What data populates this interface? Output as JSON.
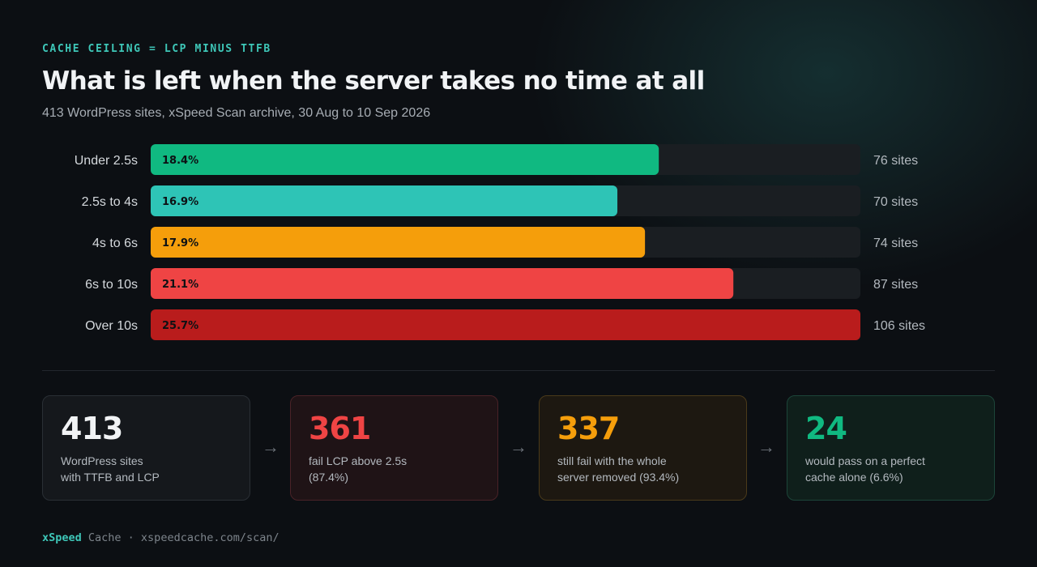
{
  "header": {
    "eyebrow": "CACHE CEILING = LCP MINUS TTFB",
    "title": "What is left when the server takes no time at all",
    "subtitle": "413 WordPress sites, xSpeed Scan archive, 30 Aug to 10 Sep 2026"
  },
  "chart_data": {
    "type": "bar",
    "orientation": "horizontal",
    "categories": [
      "Under 2.5s",
      "2.5s to 4s",
      "4s to 6s",
      "6s to 10s",
      "Over 10s"
    ],
    "values": [
      18.4,
      16.9,
      17.9,
      21.1,
      25.7
    ],
    "value_labels": [
      "18.4%",
      "16.9%",
      "17.9%",
      "21.1%",
      "25.7%"
    ],
    "counts": [
      "76 sites",
      "70 sites",
      "74 sites",
      "87 sites",
      "106 sites"
    ],
    "colors": [
      "#10b981",
      "#2ec4b6",
      "#f59e0b",
      "#ef4444",
      "#b91c1c"
    ],
    "track_color": "#1a1e22",
    "xlim": [
      0,
      25.7
    ]
  },
  "cards": [
    {
      "value": "413",
      "desc_line1": "WordPress sites",
      "desc_line2": "with TTFB and LCP",
      "color": "#f1f3f5",
      "bg": "#15181c",
      "border": "#2a2f35"
    },
    {
      "value": "361",
      "desc_line1": "fail LCP above 2.5s",
      "desc_line2": "(87.4%)",
      "color": "#ef4444",
      "bg": "#1f1316",
      "border": "#4a2227"
    },
    {
      "value": "337",
      "desc_line1": "still fail with the whole",
      "desc_line2": "server removed (93.4%)",
      "color": "#f59e0b",
      "bg": "#1d1811",
      "border": "#4a3a1a"
    },
    {
      "value": "24",
      "desc_line1": "would pass on a perfect",
      "desc_line2": "cache alone (6.6%)",
      "color": "#10b981",
      "bg": "#0f1f1b",
      "border": "#1c4539"
    }
  ],
  "arrows": [
    "→",
    "→",
    "→"
  ],
  "footer": {
    "brand": "xSpeed",
    "rest": " Cache · xspeedcache.com/scan/"
  }
}
